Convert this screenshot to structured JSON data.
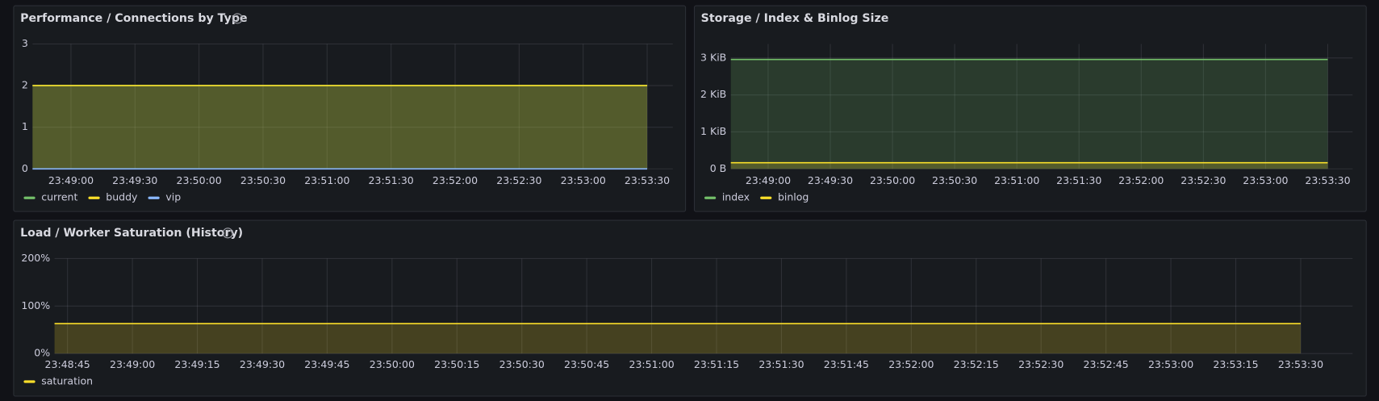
{
  "chart_data": [
    {
      "type": "line",
      "title": "Performance / Connections by Type",
      "x": [
        "23:48:42",
        "23:53:30"
      ],
      "series": [
        {
          "name": "current",
          "color": "#73bf69",
          "values": [
            2,
            2
          ]
        },
        {
          "name": "buddy",
          "color": "#fade2a",
          "values": [
            2,
            2
          ]
        },
        {
          "name": "vip",
          "color": "#8ab8ff",
          "values": [
            0,
            0
          ]
        }
      ],
      "xlim": [
        "23:48:42",
        "23:53:42"
      ],
      "xticks": [
        "23:49:00",
        "23:49:30",
        "23:50:00",
        "23:50:30",
        "23:51:00",
        "23:51:30",
        "23:52:00",
        "23:52:30",
        "23:53:00",
        "23:53:30"
      ],
      "ylim": [
        0,
        3
      ],
      "yticks": [
        0,
        1,
        2,
        3
      ],
      "grid": true
    },
    {
      "type": "line",
      "title": "Storage / Index & Binlog Size",
      "x": [
        "23:48:42",
        "23:53:30"
      ],
      "series": [
        {
          "name": "index",
          "color": "#73bf69",
          "values": [
            3030,
            3030
          ]
        },
        {
          "name": "binlog",
          "color": "#fade2a",
          "values": [
            170,
            170
          ]
        }
      ],
      "xlim": [
        "23:48:42",
        "23:53:42"
      ],
      "xticks": [
        "23:49:00",
        "23:49:30",
        "23:50:00",
        "23:50:30",
        "23:51:00",
        "23:51:30",
        "23:52:00",
        "23:52:30",
        "23:53:00",
        "23:53:30"
      ],
      "ylim": [
        0,
        3460
      ],
      "yticks": [
        {
          "value": 0,
          "label": "0 B"
        },
        {
          "value": 1024,
          "label": "1 KiB"
        },
        {
          "value": 2048,
          "label": "2 KiB"
        },
        {
          "value": 3072,
          "label": "3 KiB"
        }
      ],
      "grid": true
    },
    {
      "type": "line",
      "title": "Load / Worker Saturation (History)",
      "x": [
        "23:48:42",
        "23:53:30"
      ],
      "series": [
        {
          "name": "saturation",
          "color": "#fade2a",
          "values": [
            63,
            63
          ]
        }
      ],
      "xlim": [
        "23:48:42",
        "23:53:42"
      ],
      "xticks": [
        "23:48:45",
        "23:49:00",
        "23:49:15",
        "23:49:30",
        "23:49:45",
        "23:50:00",
        "23:50:15",
        "23:50:30",
        "23:50:45",
        "23:51:00",
        "23:51:15",
        "23:51:30",
        "23:51:45",
        "23:52:00",
        "23:52:15",
        "23:52:30",
        "23:52:45",
        "23:53:00",
        "23:53:15",
        "23:53:30"
      ],
      "ylim": [
        0,
        200
      ],
      "yticks": [
        {
          "value": 0,
          "label": "0%"
        },
        {
          "value": 100,
          "label": "100%"
        },
        {
          "value": 200,
          "label": "200%"
        }
      ],
      "grid": true
    }
  ]
}
